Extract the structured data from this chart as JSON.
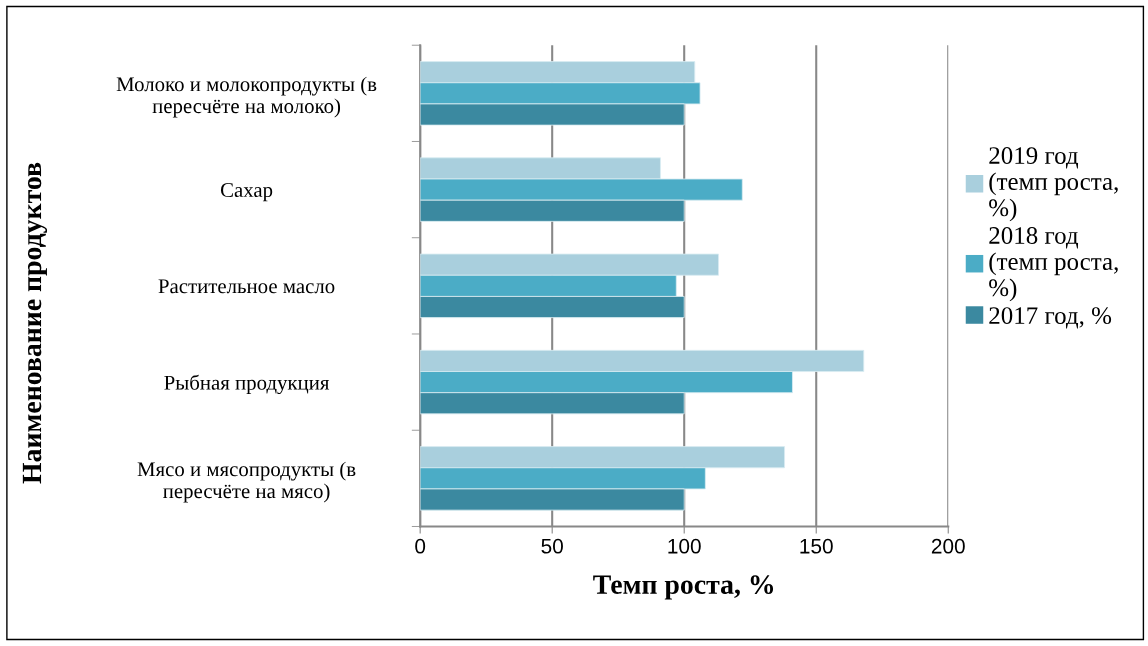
{
  "chart_data": {
    "type": "bar",
    "orientation": "horizontal",
    "xlabel": "Темп роста, %",
    "ylabel": "Наименование продуктов",
    "categories": [
      "Молоко и молокопродукты (в пересчёте на молоко)",
      "Сахар",
      "Растительное масло",
      "Рыбная продукция",
      "Мясо и мясопродукты (в пересчёте на мясо)"
    ],
    "series": [
      {
        "name": "2019 год (темп роста, %)",
        "color": "#a9cfdd",
        "values": [
          104,
          91,
          113,
          168,
          138
        ]
      },
      {
        "name": "2018 год (темп роста, %)",
        "color": "#4bacc6",
        "values": [
          106,
          122,
          97,
          141,
          108
        ]
      },
      {
        "name": "2017 год, %",
        "color": "#3b89a0",
        "values": [
          100,
          100,
          100,
          100,
          100
        ]
      }
    ],
    "xlim": [
      0,
      200
    ],
    "xticks": [
      0,
      50,
      100,
      150,
      200
    ],
    "grid": "x",
    "legend": "right"
  }
}
